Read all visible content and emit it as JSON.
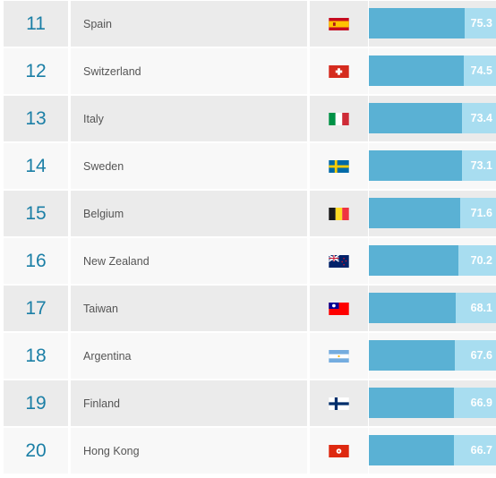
{
  "rows": [
    {
      "rank": "11",
      "country": "Spain",
      "score": "75.3",
      "fill": 0.753,
      "flag": "flag-spain-icon"
    },
    {
      "rank": "12",
      "country": "Switzerland",
      "score": "74.5",
      "fill": 0.745,
      "flag": "flag-switzerland-icon"
    },
    {
      "rank": "13",
      "country": "Italy",
      "score": "73.4",
      "fill": 0.734,
      "flag": "flag-italy-icon"
    },
    {
      "rank": "14",
      "country": "Sweden",
      "score": "73.1",
      "fill": 0.731,
      "flag": "flag-sweden-icon"
    },
    {
      "rank": "15",
      "country": "Belgium",
      "score": "71.6",
      "fill": 0.716,
      "flag": "flag-belgium-icon"
    },
    {
      "rank": "16",
      "country": "New Zealand",
      "score": "70.2",
      "fill": 0.702,
      "flag": "flag-new-zealand-icon"
    },
    {
      "rank": "17",
      "country": "Taiwan",
      "score": "68.1",
      "fill": 0.681,
      "flag": "flag-taiwan-icon"
    },
    {
      "rank": "18",
      "country": "Argentina",
      "score": "67.6",
      "fill": 0.676,
      "flag": "flag-argentina-icon"
    },
    {
      "rank": "19",
      "country": "Finland",
      "score": "66.9",
      "fill": 0.669,
      "flag": "flag-finland-icon"
    },
    {
      "rank": "20",
      "country": "Hong Kong",
      "score": "66.7",
      "fill": 0.667,
      "flag": "flag-hong-kong-icon"
    }
  ],
  "colors": {
    "rank_text": "#1b7fa6",
    "bar_fill": "#5ab1d4",
    "bar_track": "#a8ddf0",
    "row_shade": "#ebebeb",
    "row_plain": "#f8f8f8"
  }
}
